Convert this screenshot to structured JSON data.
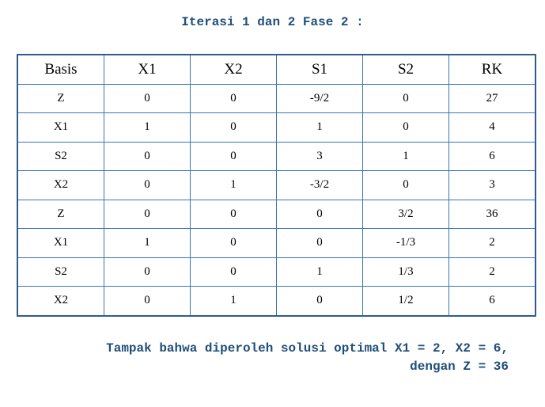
{
  "title": "Iterasi 1 dan 2 Fase 2 :",
  "table": {
    "header": [
      "Basis",
      "X1",
      "X2",
      "S1",
      "S2",
      "RK"
    ],
    "rows": [
      [
        "Z",
        "0",
        "0",
        "-9/2",
        "0",
        "27"
      ],
      [
        "X1",
        "1",
        "0",
        "1",
        "0",
        "4"
      ],
      [
        "S2",
        "0",
        "0",
        "3",
        "1",
        "6"
      ],
      [
        "X2",
        "0",
        "1",
        "-3/2",
        "0",
        "3"
      ],
      [
        "Z",
        "0",
        "0",
        "0",
        "3/2",
        "36"
      ],
      [
        "X1",
        "1",
        "0",
        "0",
        "-1/3",
        "2"
      ],
      [
        "S2",
        "0",
        "0",
        "1",
        "1/3",
        "2"
      ],
      [
        "X2",
        "0",
        "1",
        "0",
        "1/2",
        "6"
      ]
    ]
  },
  "conclusion": [
    "Tampak bahwa diperoleh solusi optimal X1 = 2, X2 = 6,",
    "dengan Z = 36"
  ]
}
